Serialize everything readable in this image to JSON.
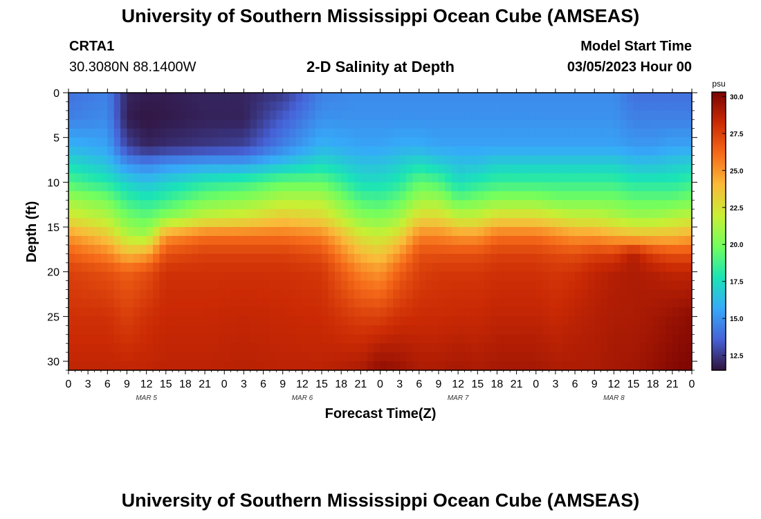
{
  "header": {
    "title": "University of Southern Mississippi Ocean Cube (AMSEAS)",
    "station": "CRTA1",
    "coords": "30.3080N  88.1400W",
    "subtitle": "2-D Salinity at Depth",
    "model_start_label": "Model Start Time",
    "model_start_value": "03/05/2023 Hour 00"
  },
  "footer": {
    "title": "University of Southern Mississippi Ocean Cube (AMSEAS)"
  },
  "chart_data": {
    "type": "heatmap",
    "title": "2-D Salinity at Depth",
    "xlabel": "Forecast Time(Z)",
    "ylabel": "Depth (ft)",
    "x_range_hours": [
      0,
      96
    ],
    "y_range_ft": [
      0,
      31
    ],
    "x_tick_labels": [
      "0",
      "3",
      "6",
      "9",
      "12",
      "15",
      "18",
      "21",
      "0",
      "3",
      "6",
      "9",
      "12",
      "15",
      "18",
      "21",
      "0",
      "3",
      "6",
      "9",
      "12",
      "15",
      "18",
      "21",
      "0",
      "3",
      "6",
      "9",
      "12",
      "15",
      "18",
      "21",
      "0"
    ],
    "day_labels": [
      {
        "label": "MAR 5",
        "hour": 12
      },
      {
        "label": "MAR 6",
        "hour": 36
      },
      {
        "label": "MAR 7",
        "hour": 60
      },
      {
        "label": "MAR 8",
        "hour": 84
      }
    ],
    "y_ticks": [
      0,
      5,
      10,
      15,
      20,
      25,
      30
    ],
    "colorbar": {
      "unit": "psu",
      "min": 11.5,
      "max": 30.3,
      "ticks": [
        "12.5",
        "15.0",
        "17.5",
        "20.0",
        "22.5",
        "25.0",
        "27.5",
        "30.0"
      ],
      "colormap": [
        "#30123b",
        "#4662d7",
        "#36aaf9",
        "#1ae4b6",
        "#72fe5e",
        "#c8ef34",
        "#faba39",
        "#f66b19",
        "#cb2a04",
        "#7a0403"
      ]
    },
    "salinity_profiles": {
      "depth_nodes_ft": [
        0,
        3,
        6,
        8,
        10,
        12,
        14,
        16,
        18,
        20,
        25,
        31
      ],
      "times_hours": [
        0,
        6,
        9,
        12,
        15,
        21,
        27,
        33,
        39,
        45,
        48,
        51,
        54,
        57,
        60,
        63,
        66,
        72,
        75,
        78,
        81,
        84,
        87,
        90,
        93,
        96
      ],
      "values_psu": [
        [
          14.0,
          14.5,
          16.0,
          17.5,
          19.0,
          21.0,
          22.5,
          25.0,
          26.5,
          27.5,
          28.0,
          28.5
        ],
        [
          14.5,
          14.8,
          15.5,
          16.5,
          18.0,
          20.0,
          21.5,
          23.5,
          25.5,
          27.0,
          28.0,
          28.5
        ],
        [
          12.0,
          11.8,
          12.8,
          15.0,
          17.0,
          18.5,
          20.0,
          21.5,
          24.0,
          26.5,
          27.5,
          28.5
        ],
        [
          11.8,
          11.6,
          12.0,
          14.5,
          16.5,
          18.0,
          19.5,
          21.0,
          24.5,
          27.0,
          28.0,
          28.5
        ],
        [
          11.8,
          11.7,
          12.2,
          15.0,
          17.0,
          18.5,
          20.5,
          25.0,
          27.0,
          28.0,
          28.3,
          28.6
        ],
        [
          12.0,
          11.9,
          12.5,
          15.5,
          18.0,
          20.0,
          22.0,
          26.0,
          27.5,
          28.0,
          28.3,
          28.6
        ],
        [
          12.0,
          11.9,
          12.8,
          15.5,
          18.5,
          20.5,
          22.5,
          26.0,
          27.5,
          28.0,
          28.4,
          28.7
        ],
        [
          12.5,
          13.5,
          14.5,
          16.5,
          19.5,
          21.5,
          23.5,
          26.0,
          27.5,
          28.0,
          28.3,
          28.6
        ],
        [
          14.5,
          15.0,
          16.0,
          17.5,
          19.5,
          21.5,
          23.0,
          25.5,
          27.0,
          27.8,
          28.2,
          28.6
        ],
        [
          14.8,
          15.0,
          15.5,
          16.5,
          17.5,
          19.0,
          20.5,
          22.5,
          24.0,
          25.5,
          27.5,
          29.0
        ],
        [
          14.8,
          15.0,
          15.5,
          16.5,
          17.5,
          18.8,
          20.3,
          22.0,
          23.5,
          25.0,
          27.5,
          29.8
        ],
        [
          14.8,
          15.0,
          15.8,
          17.0,
          18.0,
          19.5,
          21.0,
          23.0,
          25.0,
          26.5,
          28.0,
          29.5
        ],
        [
          14.8,
          15.0,
          15.8,
          17.5,
          19.5,
          21.0,
          23.0,
          25.5,
          27.0,
          27.5,
          28.2,
          29.0
        ],
        [
          14.8,
          15.0,
          15.5,
          17.0,
          19.0,
          21.0,
          23.0,
          25.5,
          27.0,
          27.8,
          28.2,
          29.0
        ],
        [
          14.8,
          15.0,
          15.5,
          16.5,
          17.5,
          19.5,
          22.0,
          25.0,
          27.0,
          27.8,
          28.3,
          29.2
        ],
        [
          14.8,
          15.0,
          15.5,
          16.5,
          18.0,
          20.0,
          22.0,
          25.0,
          27.0,
          27.8,
          28.3,
          29.0
        ],
        [
          14.8,
          15.0,
          15.5,
          17.0,
          18.5,
          20.5,
          23.0,
          26.0,
          27.5,
          28.0,
          28.5,
          29.2
        ],
        [
          14.8,
          15.0,
          15.5,
          17.0,
          18.5,
          20.5,
          23.0,
          26.0,
          27.5,
          28.0,
          28.5,
          29.2
        ],
        [
          14.8,
          15.0,
          15.5,
          17.0,
          18.5,
          20.0,
          22.5,
          25.5,
          27.2,
          27.8,
          28.3,
          29.0
        ],
        [
          14.8,
          15.0,
          15.5,
          17.0,
          18.5,
          20.0,
          22.0,
          25.0,
          27.0,
          28.0,
          28.6,
          29.0
        ],
        [
          14.8,
          15.0,
          15.5,
          17.0,
          18.5,
          20.0,
          22.0,
          25.0,
          27.5,
          28.5,
          28.8,
          29.0
        ],
        [
          14.8,
          15.0,
          15.5,
          17.0,
          18.5,
          20.0,
          21.5,
          24.5,
          27.5,
          28.8,
          29.0,
          29.2
        ],
        [
          14.0,
          14.5,
          15.2,
          16.5,
          18.0,
          19.5,
          21.0,
          24.0,
          28.8,
          29.0,
          29.0,
          29.3
        ],
        [
          14.0,
          14.5,
          15.2,
          16.5,
          18.0,
          19.5,
          21.0,
          24.0,
          27.5,
          28.8,
          29.2,
          29.6
        ],
        [
          14.0,
          14.5,
          15.5,
          16.8,
          18.0,
          19.5,
          21.5,
          24.0,
          27.0,
          28.5,
          29.5,
          30.0
        ],
        [
          14.0,
          14.5,
          15.5,
          17.0,
          18.5,
          20.0,
          22.0,
          24.5,
          27.0,
          28.5,
          29.8,
          30.2
        ]
      ]
    }
  }
}
